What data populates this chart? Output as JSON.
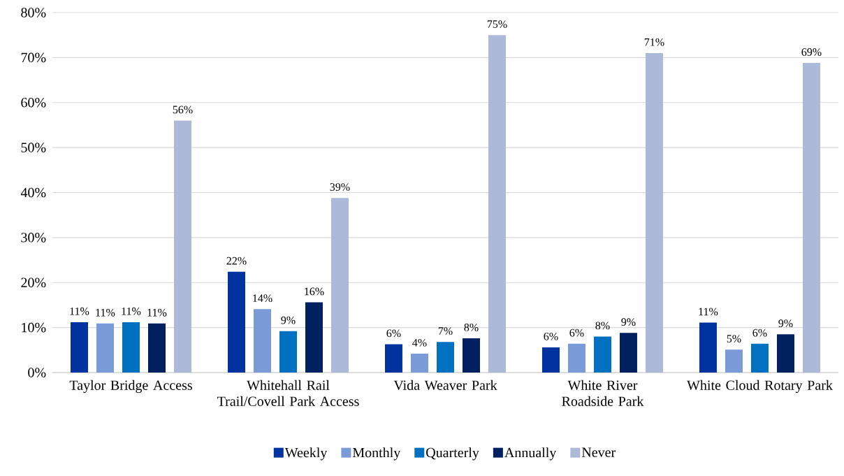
{
  "chart_data": {
    "type": "bar",
    "categories": [
      "Taylor Bridge Access",
      "Whitehall Rail Trail/Covell Park Access",
      "Vida Weaver Park",
      "White River Roadside Park",
      "White Cloud Rotary Park"
    ],
    "series": [
      {
        "name": "Weekly",
        "color": "#0033a0",
        "values": [
          11.2,
          22.4,
          6.3,
          5.6,
          11.1
        ],
        "value_labels": [
          "11%",
          "22%",
          "6%",
          "6%",
          "11%"
        ]
      },
      {
        "name": "Monthly",
        "color": "#7a9ad8",
        "values": [
          10.9,
          14.1,
          4.2,
          6.4,
          5.1
        ],
        "value_labels": [
          "11%",
          "14%",
          "4%",
          "6%",
          "5%"
        ]
      },
      {
        "name": "Quarterly",
        "color": "#0070c0",
        "values": [
          11.2,
          9.2,
          6.8,
          8.0,
          6.4
        ],
        "value_labels": [
          "11%",
          "9%",
          "7%",
          "8%",
          "6%"
        ]
      },
      {
        "name": "Annually",
        "color": "#002060",
        "values": [
          10.9,
          15.6,
          7.6,
          8.8,
          8.5
        ],
        "value_labels": [
          "11%",
          "16%",
          "8%",
          "9%",
          "9%"
        ]
      },
      {
        "name": "Never",
        "color": "#adb9d8",
        "values": [
          56,
          38.8,
          75,
          71,
          68.8
        ],
        "value_labels": [
          "56%",
          "39%",
          "75%",
          "71%",
          "69%"
        ]
      }
    ],
    "ylim": [
      0,
      80
    ],
    "yticks": [
      {
        "value": 0,
        "label": "0%"
      },
      {
        "value": 10,
        "label": "10%"
      },
      {
        "value": 20,
        "label": "20%"
      },
      {
        "value": 30,
        "label": "30%"
      },
      {
        "value": 40,
        "label": "40%"
      },
      {
        "value": 50,
        "label": "50%"
      },
      {
        "value": 60,
        "label": "60%"
      },
      {
        "value": 70,
        "label": "70%"
      },
      {
        "value": 80,
        "label": "80%"
      }
    ],
    "grid": "y",
    "legend": "bottom"
  }
}
